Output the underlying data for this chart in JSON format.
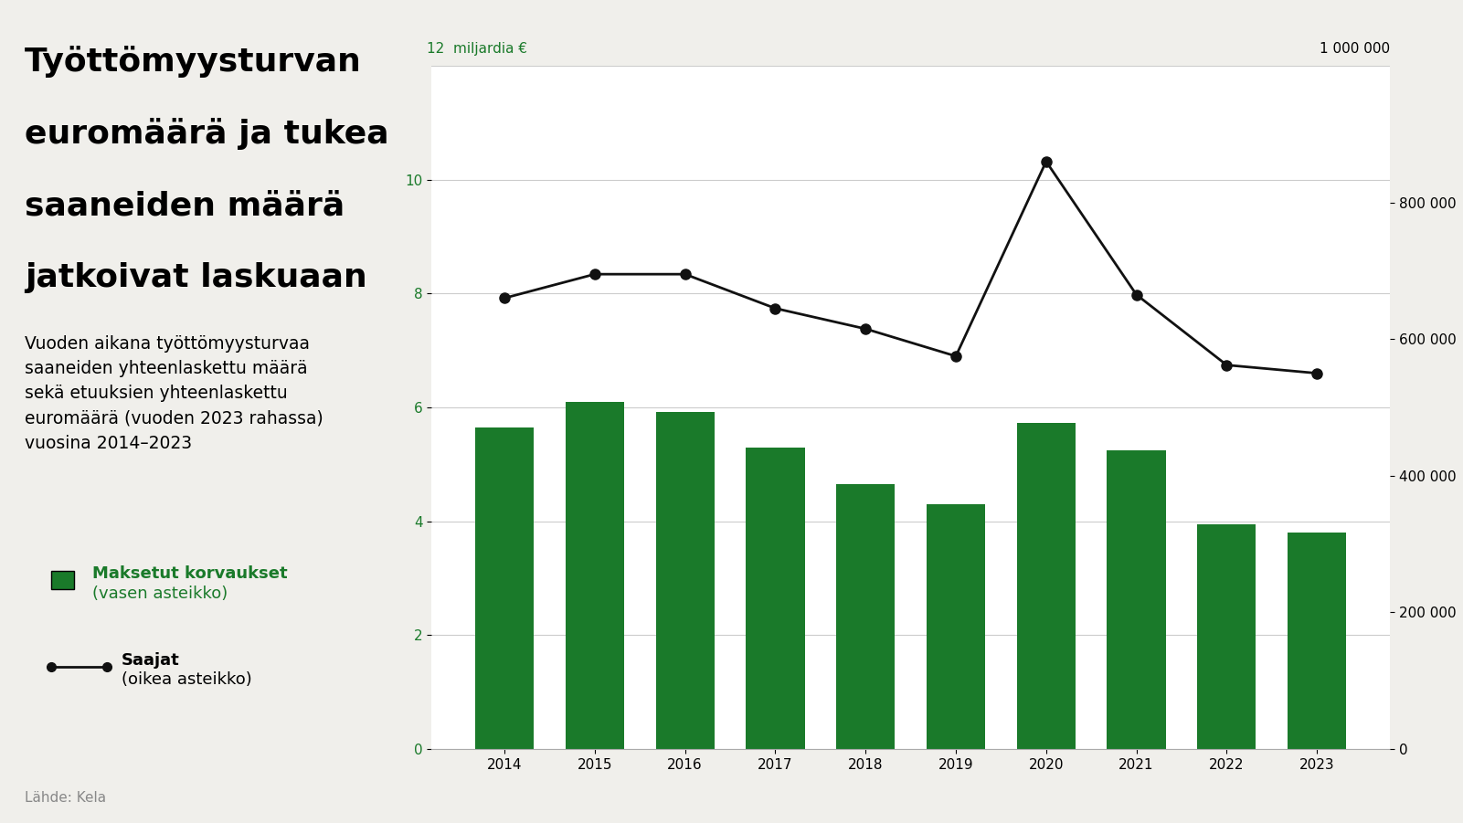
{
  "years": [
    2014,
    2015,
    2016,
    2017,
    2018,
    2019,
    2020,
    2021,
    2022,
    2023
  ],
  "bar_values": [
    5.65,
    6.1,
    5.92,
    5.3,
    4.65,
    4.3,
    5.72,
    5.25,
    3.95,
    3.8
  ],
  "line_values": [
    660000,
    695000,
    695000,
    645000,
    615000,
    575000,
    860000,
    665000,
    562000,
    550000
  ],
  "bar_color": "#1a7a2a",
  "line_color": "#111111",
  "outer_background": "#f0efeb",
  "chart_background": "#ffffff",
  "title_lines": [
    "Työttömyysturvan",
    "euromäärä ja tukea",
    "saaneiden määrä",
    "jatkoivat laskuaan"
  ],
  "subtitle": "Vuoden aikana työttömyysturvaa\nsaaneiden yhteenlaskettu määrä\nsekä etuuksien yhteenlaskettu\neuromäärä (vuoden 2023 rahassa)\nvuosina 2014–2023",
  "legend_bar_label_line1": "Maksetut korvaukset",
  "legend_bar_label_line2": "(vasen asteikko)",
  "legend_line_label_line1": "Saajat",
  "legend_line_label_line2": "(oikea asteikko)",
  "source_label": "Lähde: Kela",
  "left_axis_label": "miljardia €",
  "green_color": "#1a7a2a",
  "black_color": "#111111",
  "gray_color": "#888888",
  "title_fontsize": 26,
  "subtitle_fontsize": 13.5,
  "axis_label_fontsize": 11,
  "tick_fontsize": 11,
  "legend_fontsize": 13,
  "source_fontsize": 11,
  "left_ylim": [
    0,
    12
  ],
  "right_ylim": [
    0,
    1000000
  ]
}
